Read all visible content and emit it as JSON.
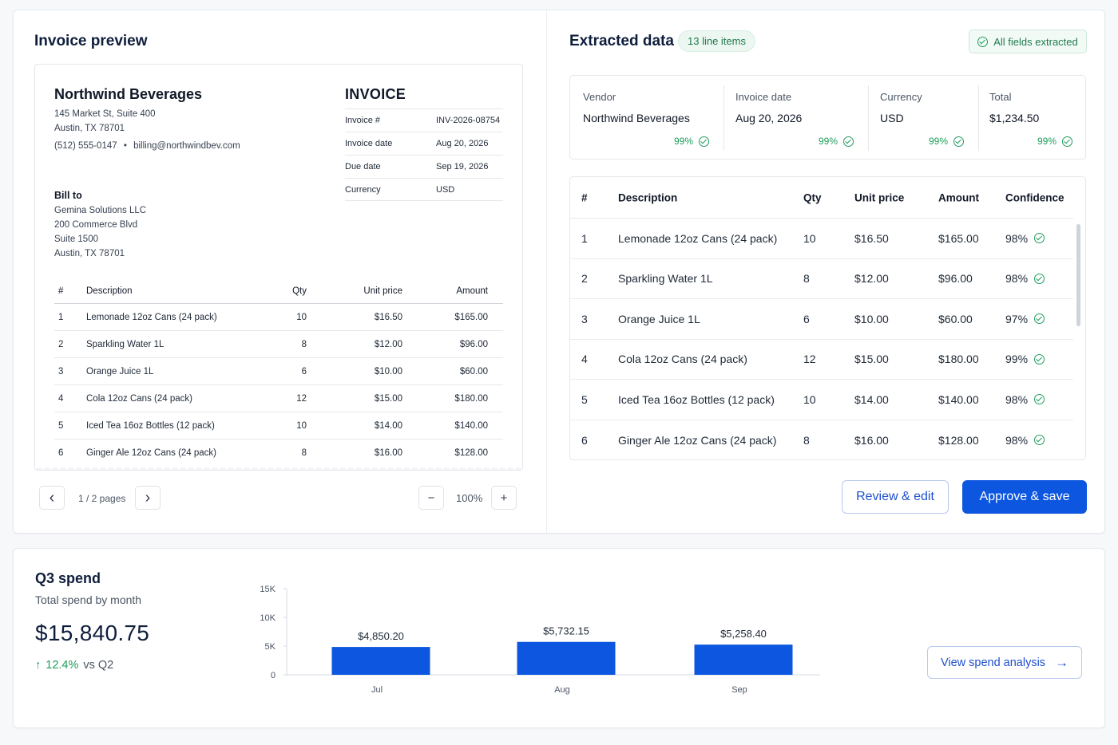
{
  "invoice_preview": {
    "title": "Invoice preview",
    "company": "Northwind Beverages",
    "address1": "145 Market St, Suite 400",
    "address2": "Austin, TX 78701",
    "phone": "(512) 555-0147",
    "email": "billing@northwindbev.com",
    "bill_to_label": "Bill to",
    "bill_to_lines": [
      "Gemina Solutions LLC",
      "200 Commerce Blvd",
      "Suite 1500",
      "Austin, TX 78701"
    ],
    "doc_title": "INVOICE",
    "meta": [
      {
        "label": "Invoice #",
        "value": "INV-2026-08754"
      },
      {
        "label": "Invoice date",
        "value": "Aug 20, 2026"
      },
      {
        "label": "Due date",
        "value": "Sep 19, 2026"
      },
      {
        "label": "Currency",
        "value": "USD"
      }
    ],
    "columns": [
      "#",
      "Description",
      "Qty",
      "Unit price",
      "Amount"
    ],
    "rows": [
      [
        "1",
        "Lemonade 12oz Cans (24 pack)",
        "10",
        "$16.50",
        "$165.00"
      ],
      [
        "2",
        "Sparkling Water 1L",
        "8",
        "$12.00",
        "$96.00"
      ],
      [
        "3",
        "Orange Juice 1L",
        "6",
        "$10.00",
        "$60.00"
      ],
      [
        "4",
        "Cola 12oz Cans (24 pack)",
        "12",
        "$15.00",
        "$180.00"
      ],
      [
        "5",
        "Iced Tea 16oz Bottles (12 pack)",
        "10",
        "$14.00",
        "$140.00"
      ],
      [
        "6",
        "Ginger Ale 12oz Cans (24 pack)",
        "8",
        "$16.00",
        "$128.00"
      ]
    ],
    "pager": "1 / 2 pages",
    "zoom": "100%",
    "prev_glyph": "‹",
    "next_glyph": "›",
    "zoom_out_glyph": "−",
    "zoom_in_glyph": "+"
  },
  "extracted": {
    "title": "Extracted data",
    "line_items_pill": "13 line items",
    "status": "All fields extracted",
    "fields": [
      {
        "label": "Vendor",
        "value": "Northwind Beverages",
        "confidence": "99%"
      },
      {
        "label": "Invoice date",
        "value": "Aug 20, 2026",
        "confidence": "99%"
      },
      {
        "label": "Currency",
        "value": "USD",
        "confidence": "99%"
      },
      {
        "label": "Total",
        "value": "$1,234.50",
        "confidence": "99%"
      }
    ],
    "columns": [
      "#",
      "Description",
      "Qty",
      "Unit price",
      "Amount",
      "Confidence"
    ],
    "rows": [
      [
        "1",
        "Lemonade 12oz Cans (24 pack)",
        "10",
        "$16.50",
        "$165.00",
        "98%"
      ],
      [
        "2",
        "Sparkling Water 1L",
        "8",
        "$12.00",
        "$96.00",
        "98%"
      ],
      [
        "3",
        "Orange Juice 1L",
        "6",
        "$10.00",
        "$60.00",
        "97%"
      ],
      [
        "4",
        "Cola 12oz Cans (24 pack)",
        "12",
        "$15.00",
        "$180.00",
        "99%"
      ],
      [
        "5",
        "Iced Tea 16oz Bottles (12 pack)",
        "10",
        "$14.00",
        "$140.00",
        "98%"
      ],
      [
        "6",
        "Ginger Ale 12oz Cans (24 pack)",
        "8",
        "$16.00",
        "$128.00",
        "98%"
      ]
    ],
    "review_button": "Review & edit",
    "approve_button": "Approve & save"
  },
  "spend": {
    "title": "Q3 spend",
    "subtitle": "Total spend by month",
    "total": "$15,840.75",
    "delta": "12.4%",
    "delta_suffix": "vs Q2",
    "delta_arrow": "↑",
    "link_button": "View spend analysis",
    "link_arrow": "→"
  },
  "chart_data": {
    "type": "bar",
    "categories": [
      "Jul",
      "Aug",
      "Sep"
    ],
    "values": [
      4850.2,
      5732.15,
      5258.4
    ],
    "data_labels": [
      "$4,850.20",
      "$5,732.15",
      "$5,258.40"
    ],
    "y_ticks": [
      0,
      5000,
      10000,
      15000
    ],
    "y_tick_labels": [
      "0",
      "5K",
      "10K",
      "15K"
    ],
    "ylim": [
      0,
      15000
    ],
    "title": "",
    "xlabel": "",
    "ylabel": "",
    "grid": false,
    "bar_color": "#0d57e0"
  },
  "colors": {
    "accent": "#0d57e0",
    "success": "#1f9d5c",
    "heading": "#0f1e3d"
  }
}
